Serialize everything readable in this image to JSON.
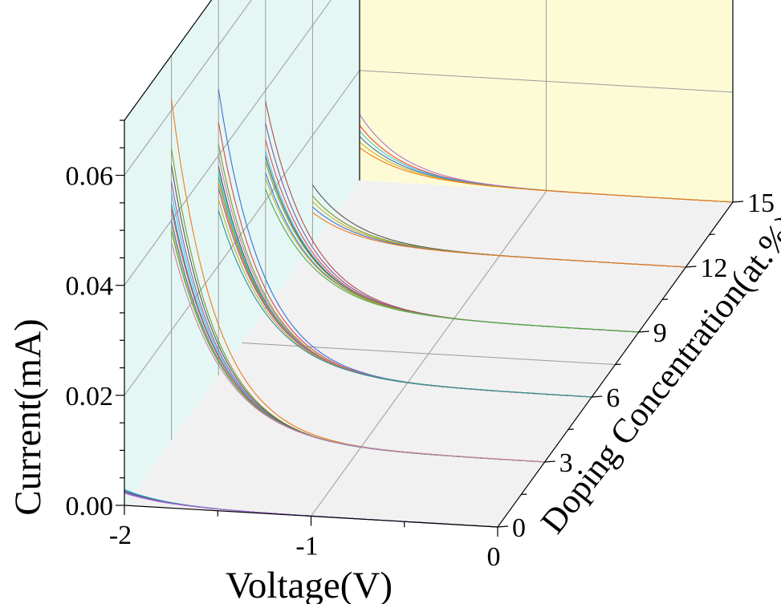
{
  "chart_data": {
    "type": "line",
    "projection": "3d",
    "xlabel": "Voltage(V)",
    "ylabel": "Doping Concentration(at.%)",
    "zlabel": "Current(mA)",
    "xlim": [
      -2,
      0
    ],
    "ylim": [
      0,
      15
    ],
    "zlim": [
      0,
      0.07
    ],
    "x_ticks": [
      "-2",
      "-1",
      "0"
    ],
    "y_ticks": [
      "0",
      "3",
      "6",
      "9",
      "12",
      "15"
    ],
    "z_ticks": [
      "0.00",
      "0.02",
      "0.04",
      "0.06"
    ],
    "grid": true,
    "colors": {
      "back_wall": "#fdfbd6",
      "side_wall": "#e5f7f4",
      "floor": "#f1f1f1",
      "grid": "#9a9a9a"
    },
    "series_groups": [
      {
        "doping": 0,
        "peak_currents": [
          0.0029,
          0.0027,
          0.0025,
          0.0024,
          0.0022
        ],
        "colors": [
          "#37c6e6",
          "#555555",
          "#3a6fd8",
          "#7a5aa8",
          "#b070d8"
        ]
      },
      {
        "doping": 3,
        "peak_currents": [
          0.062,
          0.053,
          0.05,
          0.047,
          0.045,
          0.043,
          0.042,
          0.04,
          0.039,
          0.038,
          0.036
        ],
        "colors": [
          "#ef7a1a",
          "#7a9a2a",
          "#555555",
          "#9a5aa8",
          "#37c6e6",
          "#2a8aa8",
          "#e04646",
          "#3a6fd8",
          "#c9b020",
          "#4aa84a",
          "#d07ab0"
        ]
      },
      {
        "doping": 6,
        "peak_currents": [
          0.052,
          0.046,
          0.042,
          0.04,
          0.038,
          0.037,
          0.036,
          0.035,
          0.034,
          0.032,
          0.03
        ],
        "colors": [
          "#3a6fd8",
          "#e04646",
          "#7a9a2a",
          "#d07ab0",
          "#555555",
          "#37c6e6",
          "#4aa84a",
          "#ef7a1a",
          "#9a5aa8",
          "#c9b020",
          "#2a8aa8"
        ]
      },
      {
        "doping": 9,
        "peak_currents": [
          0.038,
          0.034,
          0.031,
          0.029,
          0.028,
          0.027,
          0.025,
          0.024,
          0.022
        ],
        "colors": [
          "#b04a4a",
          "#7a5aa8",
          "#e04646",
          "#37c6e6",
          "#555555",
          "#7a9a2a",
          "#3a6fd8",
          "#c9b020",
          "#4aa84a"
        ]
      },
      {
        "doping": 12,
        "peak_currents": [
          0.011,
          0.009,
          0.008,
          0.007,
          0.006
        ],
        "colors": [
          "#555555",
          "#7a9a2a",
          "#c9b020",
          "#3a6fd8",
          "#ef7a1a"
        ]
      },
      {
        "doping": 15,
        "peak_currents": [
          0.012,
          0.01,
          0.009,
          0.008,
          0.007,
          0.006
        ],
        "colors": [
          "#b070d8",
          "#e04646",
          "#37c6e6",
          "#3a6fd8",
          "#c9b020",
          "#ef7a1a"
        ]
      }
    ]
  }
}
